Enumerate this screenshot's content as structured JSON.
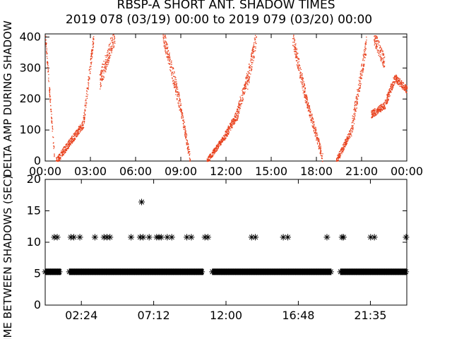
{
  "title_line1": "RBSP-A SHORT ANT. SHADOW TIMES",
  "title_line2": "2019 078 (03/19) 00:00 to 2019 079 (03/20) 00:00",
  "chart_data": [
    {
      "type": "scatter",
      "ylabel": "DELTA AMP DURING SHADOW",
      "xlim": [
        0,
        24
      ],
      "ylim": [
        0,
        410
      ],
      "x_tick_labels": [
        "00:00",
        "03:00",
        "06:00",
        "09:00",
        "12:00",
        "15:00",
        "18:00",
        "21:00",
        "00:00"
      ],
      "x_tick_values": [
        0,
        3,
        6,
        9,
        12,
        15,
        18,
        21,
        24
      ],
      "y_ticks": [
        0,
        100,
        200,
        300,
        400
      ],
      "point_color": "#e8401c",
      "segments": [
        {
          "x0": 0.0,
          "x1": 0.6,
          "y0": 400,
          "y1": 8,
          "jitter": 30
        },
        {
          "x0": 0.7,
          "x1": 2.5,
          "y0": 0,
          "y1": 120,
          "jitter": 25
        },
        {
          "x0": 2.5,
          "x1": 3.2,
          "y0": 120,
          "y1": 400,
          "jitter": 45
        },
        {
          "x0": 3.6,
          "x1": 4.6,
          "y0": 260,
          "y1": 410,
          "jitter": 60
        },
        {
          "x0": 7.8,
          "x1": 8.9,
          "y0": 410,
          "y1": 190,
          "jitter": 55
        },
        {
          "x0": 8.9,
          "x1": 9.6,
          "y0": 190,
          "y1": 5,
          "jitter": 35
        },
        {
          "x0": 10.7,
          "x1": 11.9,
          "y0": 0,
          "y1": 80,
          "jitter": 20
        },
        {
          "x0": 11.9,
          "x1": 12.7,
          "y0": 80,
          "y1": 150,
          "jitter": 30
        },
        {
          "x0": 12.7,
          "x1": 13.4,
          "y0": 150,
          "y1": 270,
          "jitter": 45
        },
        {
          "x0": 13.4,
          "x1": 14.0,
          "y0": 260,
          "y1": 400,
          "jitter": 60
        },
        {
          "x0": 16.4,
          "x1": 17.3,
          "y0": 400,
          "y1": 200,
          "jitter": 50
        },
        {
          "x0": 17.3,
          "x1": 18.4,
          "y0": 200,
          "y1": 10,
          "jitter": 35
        },
        {
          "x0": 19.3,
          "x1": 20.3,
          "y0": 0,
          "y1": 100,
          "jitter": 25
        },
        {
          "x0": 20.3,
          "x1": 21.3,
          "y0": 100,
          "y1": 380,
          "jitter": 55
        },
        {
          "x0": 21.8,
          "x1": 22.5,
          "y0": 400,
          "y1": 320,
          "jitter": 50
        },
        {
          "x0": 21.6,
          "x1": 22.5,
          "y0": 150,
          "y1": 180,
          "jitter": 25
        },
        {
          "x0": 22.5,
          "x1": 23.2,
          "y0": 180,
          "y1": 270,
          "jitter": 30
        },
        {
          "x0": 23.2,
          "x1": 24.0,
          "y0": 270,
          "y1": 230,
          "jitter": 25
        }
      ]
    },
    {
      "type": "scatter",
      "ylabel": "TIME BETWEEN SHADOWS (SEC)",
      "xlim": [
        0,
        24
      ],
      "ylim": [
        0,
        20
      ],
      "x_tick_labels": [
        "02:24",
        "07:12",
        "12:00",
        "16:48",
        "21:35"
      ],
      "x_tick_values": [
        2.4,
        7.2,
        12.0,
        16.8,
        21.583
      ],
      "y_ticks": [
        0,
        5,
        10,
        15,
        20
      ],
      "marker": "asterisk",
      "point_color": "#000000",
      "band_y": 5.3,
      "band_segments": [
        [
          0.0,
          1.05
        ],
        [
          1.6,
          10.5
        ],
        [
          11.1,
          19.0
        ],
        [
          19.6,
          24.0
        ]
      ],
      "outliers": [
        {
          "x": 0.6,
          "y": 10.8
        },
        {
          "x": 0.8,
          "y": 10.8
        },
        {
          "x": 1.7,
          "y": 10.8
        },
        {
          "x": 1.9,
          "y": 10.8
        },
        {
          "x": 2.3,
          "y": 10.8
        },
        {
          "x": 3.3,
          "y": 10.8
        },
        {
          "x": 3.9,
          "y": 10.8
        },
        {
          "x": 4.1,
          "y": 10.8
        },
        {
          "x": 4.3,
          "y": 10.8
        },
        {
          "x": 5.7,
          "y": 10.8
        },
        {
          "x": 6.3,
          "y": 10.8
        },
        {
          "x": 6.5,
          "y": 10.8
        },
        {
          "x": 6.9,
          "y": 10.8
        },
        {
          "x": 7.4,
          "y": 10.8
        },
        {
          "x": 7.55,
          "y": 10.8
        },
        {
          "x": 7.7,
          "y": 10.8
        },
        {
          "x": 8.1,
          "y": 10.8
        },
        {
          "x": 8.4,
          "y": 10.8
        },
        {
          "x": 9.4,
          "y": 10.8
        },
        {
          "x": 9.7,
          "y": 10.8
        },
        {
          "x": 10.6,
          "y": 10.8
        },
        {
          "x": 10.8,
          "y": 10.8
        },
        {
          "x": 13.7,
          "y": 10.8
        },
        {
          "x": 13.95,
          "y": 10.8
        },
        {
          "x": 15.8,
          "y": 10.8
        },
        {
          "x": 16.1,
          "y": 10.8
        },
        {
          "x": 18.7,
          "y": 10.8
        },
        {
          "x": 19.7,
          "y": 10.8
        },
        {
          "x": 19.8,
          "y": 10.8
        },
        {
          "x": 21.6,
          "y": 10.8
        },
        {
          "x": 21.85,
          "y": 10.8
        },
        {
          "x": 23.95,
          "y": 10.8
        },
        {
          "x": 6.4,
          "y": 16.4
        }
      ]
    }
  ]
}
